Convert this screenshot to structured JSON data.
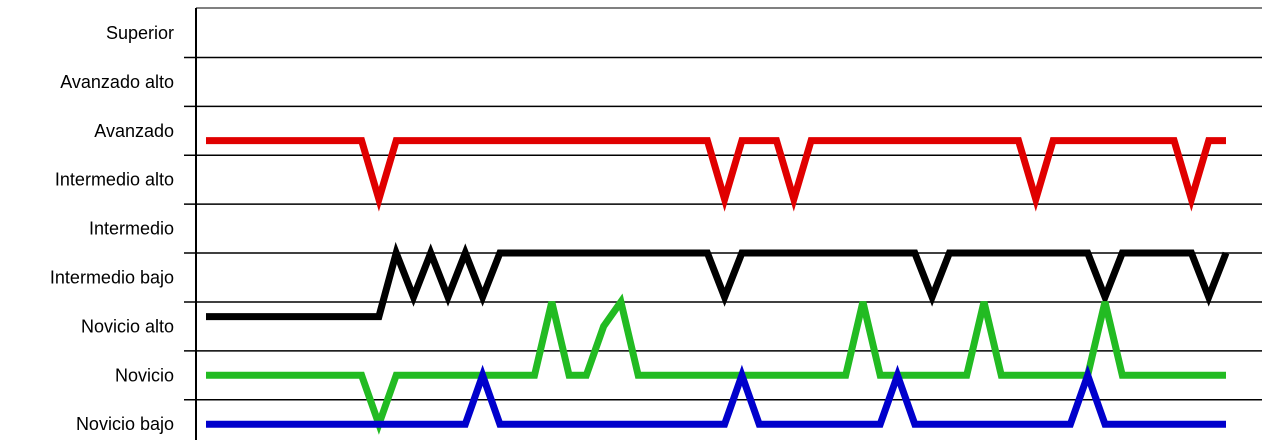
{
  "chart_data": {
    "type": "line",
    "title": "",
    "xlabel": "",
    "ylabel": "",
    "categories": [
      "Superior",
      "Avanzado alto",
      "Avanzado",
      "Intermedio alto",
      "Intermedio",
      "Intermedio bajo",
      "Novicio alto",
      "Novicio",
      "Novicio bajo"
    ],
    "xlim": [
      0,
      59
    ],
    "grid": true,
    "legend": "none",
    "series": [
      {
        "color": "#e00000",
        "x": [
          0,
          8,
          9,
          10,
          11,
          28,
          29,
          30,
          31,
          32,
          33,
          34,
          35,
          46,
          47,
          48,
          49,
          55,
          56,
          57,
          58,
          59
        ],
        "y": [
          2.2,
          2.2,
          2.2,
          3.4,
          2.2,
          2.2,
          2.2,
          3.4,
          2.2,
          2.2,
          2.2,
          3.4,
          2.2,
          2.2,
          2.2,
          3.4,
          2.2,
          2.2,
          2.2,
          3.4,
          2.2,
          2.2
        ]
      },
      {
        "color": "#000000",
        "x": [
          0,
          9,
          10,
          11,
          12,
          13,
          14,
          15,
          16,
          17,
          28,
          29,
          30,
          31,
          40,
          41,
          42,
          43,
          50,
          51,
          52,
          53,
          56,
          57,
          58,
          59
        ],
        "y": [
          5.8,
          5.8,
          5.8,
          4.5,
          5.4,
          4.5,
          5.4,
          4.5,
          5.4,
          4.5,
          4.5,
          4.5,
          5.4,
          4.5,
          4.5,
          4.5,
          5.4,
          4.5,
          4.5,
          4.5,
          5.4,
          4.5,
          4.5,
          4.5,
          5.4,
          4.5
        ]
      },
      {
        "color": "#22bb22",
        "x": [
          0,
          8,
          9,
          10,
          11,
          18,
          19,
          20,
          21,
          22,
          23,
          24,
          25,
          28,
          29,
          30,
          31,
          36,
          37,
          38,
          39,
          44,
          45,
          46,
          47,
          51,
          52,
          53,
          54,
          59
        ],
        "y": [
          7.0,
          7.0,
          7.0,
          8.0,
          7.0,
          7.0,
          7.0,
          5.5,
          7.0,
          7.0,
          6.0,
          5.5,
          7.0,
          7.0,
          7.0,
          7.0,
          7.0,
          7.0,
          7.0,
          5.5,
          7.0,
          7.0,
          5.5,
          7.0,
          7.0,
          7.0,
          5.5,
          7.0,
          7.0,
          7.0
        ]
      },
      {
        "color": "#0000cc",
        "x": [
          0,
          14,
          15,
          16,
          17,
          29,
          30,
          31,
          32,
          39,
          40,
          41,
          42,
          50,
          51,
          52,
          53,
          59
        ],
        "y": [
          8.0,
          8.0,
          8.0,
          7.0,
          8.0,
          8.0,
          8.0,
          7.0,
          8.0,
          8.0,
          7.0,
          8.0,
          8.0,
          8.0,
          7.0,
          8.0,
          8.0,
          8.0
        ]
      }
    ]
  }
}
